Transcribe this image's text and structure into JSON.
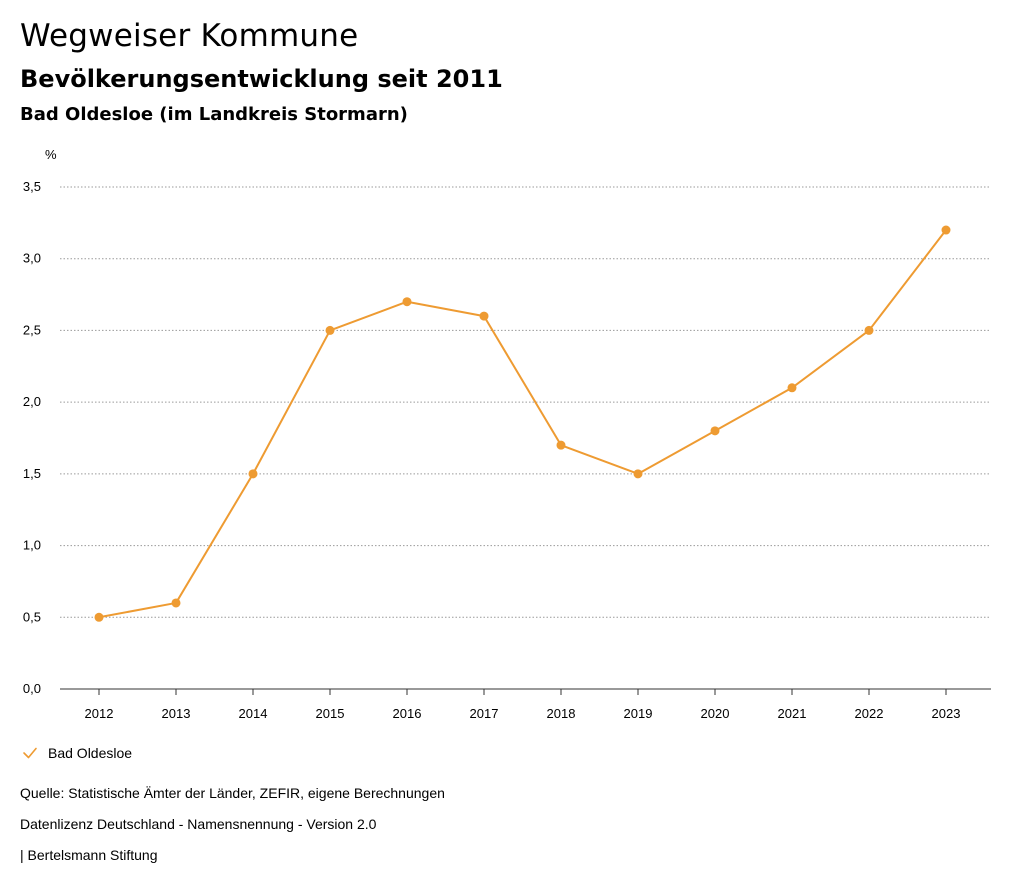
{
  "header": {
    "title": "Wegweiser Kommune",
    "subtitle": "Bevölkerungsentwicklung seit 2011",
    "region": "Bad Oldesloe (im Landkreis Stormarn)"
  },
  "legend": {
    "label": "Bad Oldesloe"
  },
  "footer": {
    "source": "Quelle: Statistische Ämter der Länder, ZEFIR, eigene Berechnungen",
    "license": "Datenlizenz Deutschland - Namensnennung - Version 2.0",
    "publisher": "| Bertelsmann Stiftung"
  },
  "colors": {
    "series": "#ee9b32",
    "grid": "#9a9a9a",
    "axis": "#333333"
  },
  "chart_data": {
    "type": "line",
    "title": "Bevölkerungsentwicklung seit 2011",
    "subtitle": "Bad Oldesloe (im Landkreis Stormarn)",
    "xlabel": "",
    "ylabel": "%",
    "ylim": [
      0,
      3.5
    ],
    "yticks": [
      0,
      0.5,
      1.0,
      1.5,
      2.0,
      2.5,
      3.0,
      3.5
    ],
    "ytick_labels": [
      "0,0",
      "0,5",
      "1,0",
      "1,5",
      "2,0",
      "2,5",
      "3,0",
      "3,5"
    ],
    "grid": true,
    "legend_position": "bottom-left",
    "categories": [
      "2012",
      "2013",
      "2014",
      "2015",
      "2016",
      "2017",
      "2018",
      "2019",
      "2020",
      "2021",
      "2022",
      "2023"
    ],
    "series": [
      {
        "name": "Bad Oldesloe",
        "values": [
          0.5,
          0.6,
          1.5,
          2.5,
          2.7,
          2.6,
          1.7,
          1.5,
          1.8,
          2.1,
          2.5,
          3.2
        ]
      }
    ]
  }
}
